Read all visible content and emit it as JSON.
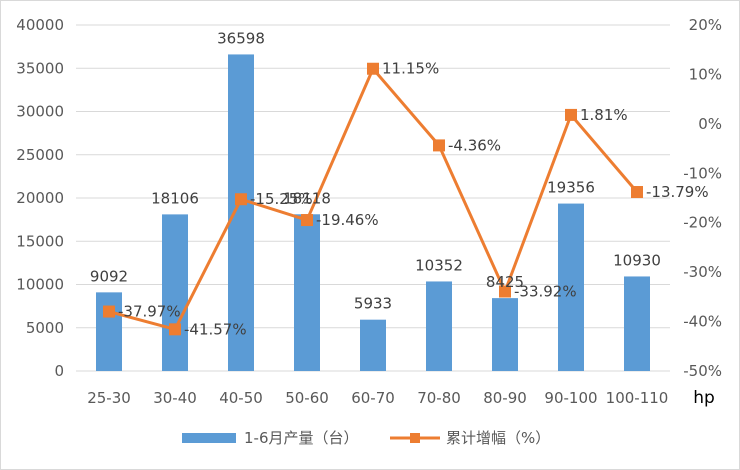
{
  "chart_data": {
    "type": "bar",
    "categories": [
      "25-30",
      "30-40",
      "40-50",
      "50-60",
      "60-70",
      "70-80",
      "80-90",
      "90-100",
      "100-110"
    ],
    "series": [
      {
        "name": "1-6月产量（台）",
        "type": "bar",
        "axis": "left",
        "color": "#5b9bd5",
        "values": [
          9092,
          18106,
          36598,
          18118,
          5933,
          10352,
          8425,
          19356,
          10930
        ],
        "labels": [
          "9092",
          "18106",
          "36598",
          "18118",
          "5933",
          "10352",
          "8425",
          "19356",
          "10930"
        ]
      },
      {
        "name": "累计增幅（%）",
        "type": "line",
        "axis": "right",
        "color": "#ed7d31",
        "values": [
          -37.97,
          -41.57,
          -15.25,
          -19.46,
          11.15,
          -4.36,
          -33.92,
          1.81,
          -13.79
        ],
        "labels": [
          "-37.97%",
          "-41.57%",
          "-15.25%",
          "-19.46%",
          "11.15%",
          "-4.36%",
          "-33.92%",
          "1.81%",
          "-13.79%"
        ]
      }
    ],
    "ylim": [
      0,
      40000
    ],
    "y_ticks": [
      "0",
      "5000",
      "10000",
      "15000",
      "20000",
      "25000",
      "30000",
      "35000",
      "40000"
    ],
    "y2lim": [
      -50,
      20
    ],
    "y2_ticks": [
      "-50%",
      "-40%",
      "-30%",
      "-20%",
      "-10%",
      "0%",
      "10%",
      "20%"
    ],
    "x_unit": "hp",
    "grid": true,
    "legend": "bottom"
  }
}
